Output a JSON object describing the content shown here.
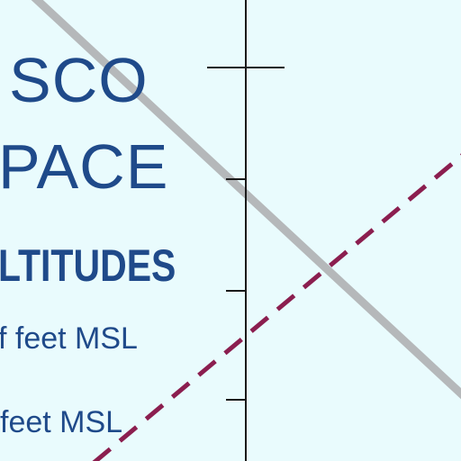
{
  "map": {
    "background_color": "#e9fbfd",
    "label_color": "#1f4a8a",
    "boundary_color": "#b5b8ba",
    "dashed_line_color": "#8b1e4f",
    "tick_line_color": "#1a1a1a"
  },
  "labels": {
    "name_line_1": "SCO",
    "name_line_2": "PACE",
    "altitudes_heading": "LTITUDES",
    "altitude_line_1": "f feet MSL",
    "altitude_line_2": "feet MSL"
  }
}
